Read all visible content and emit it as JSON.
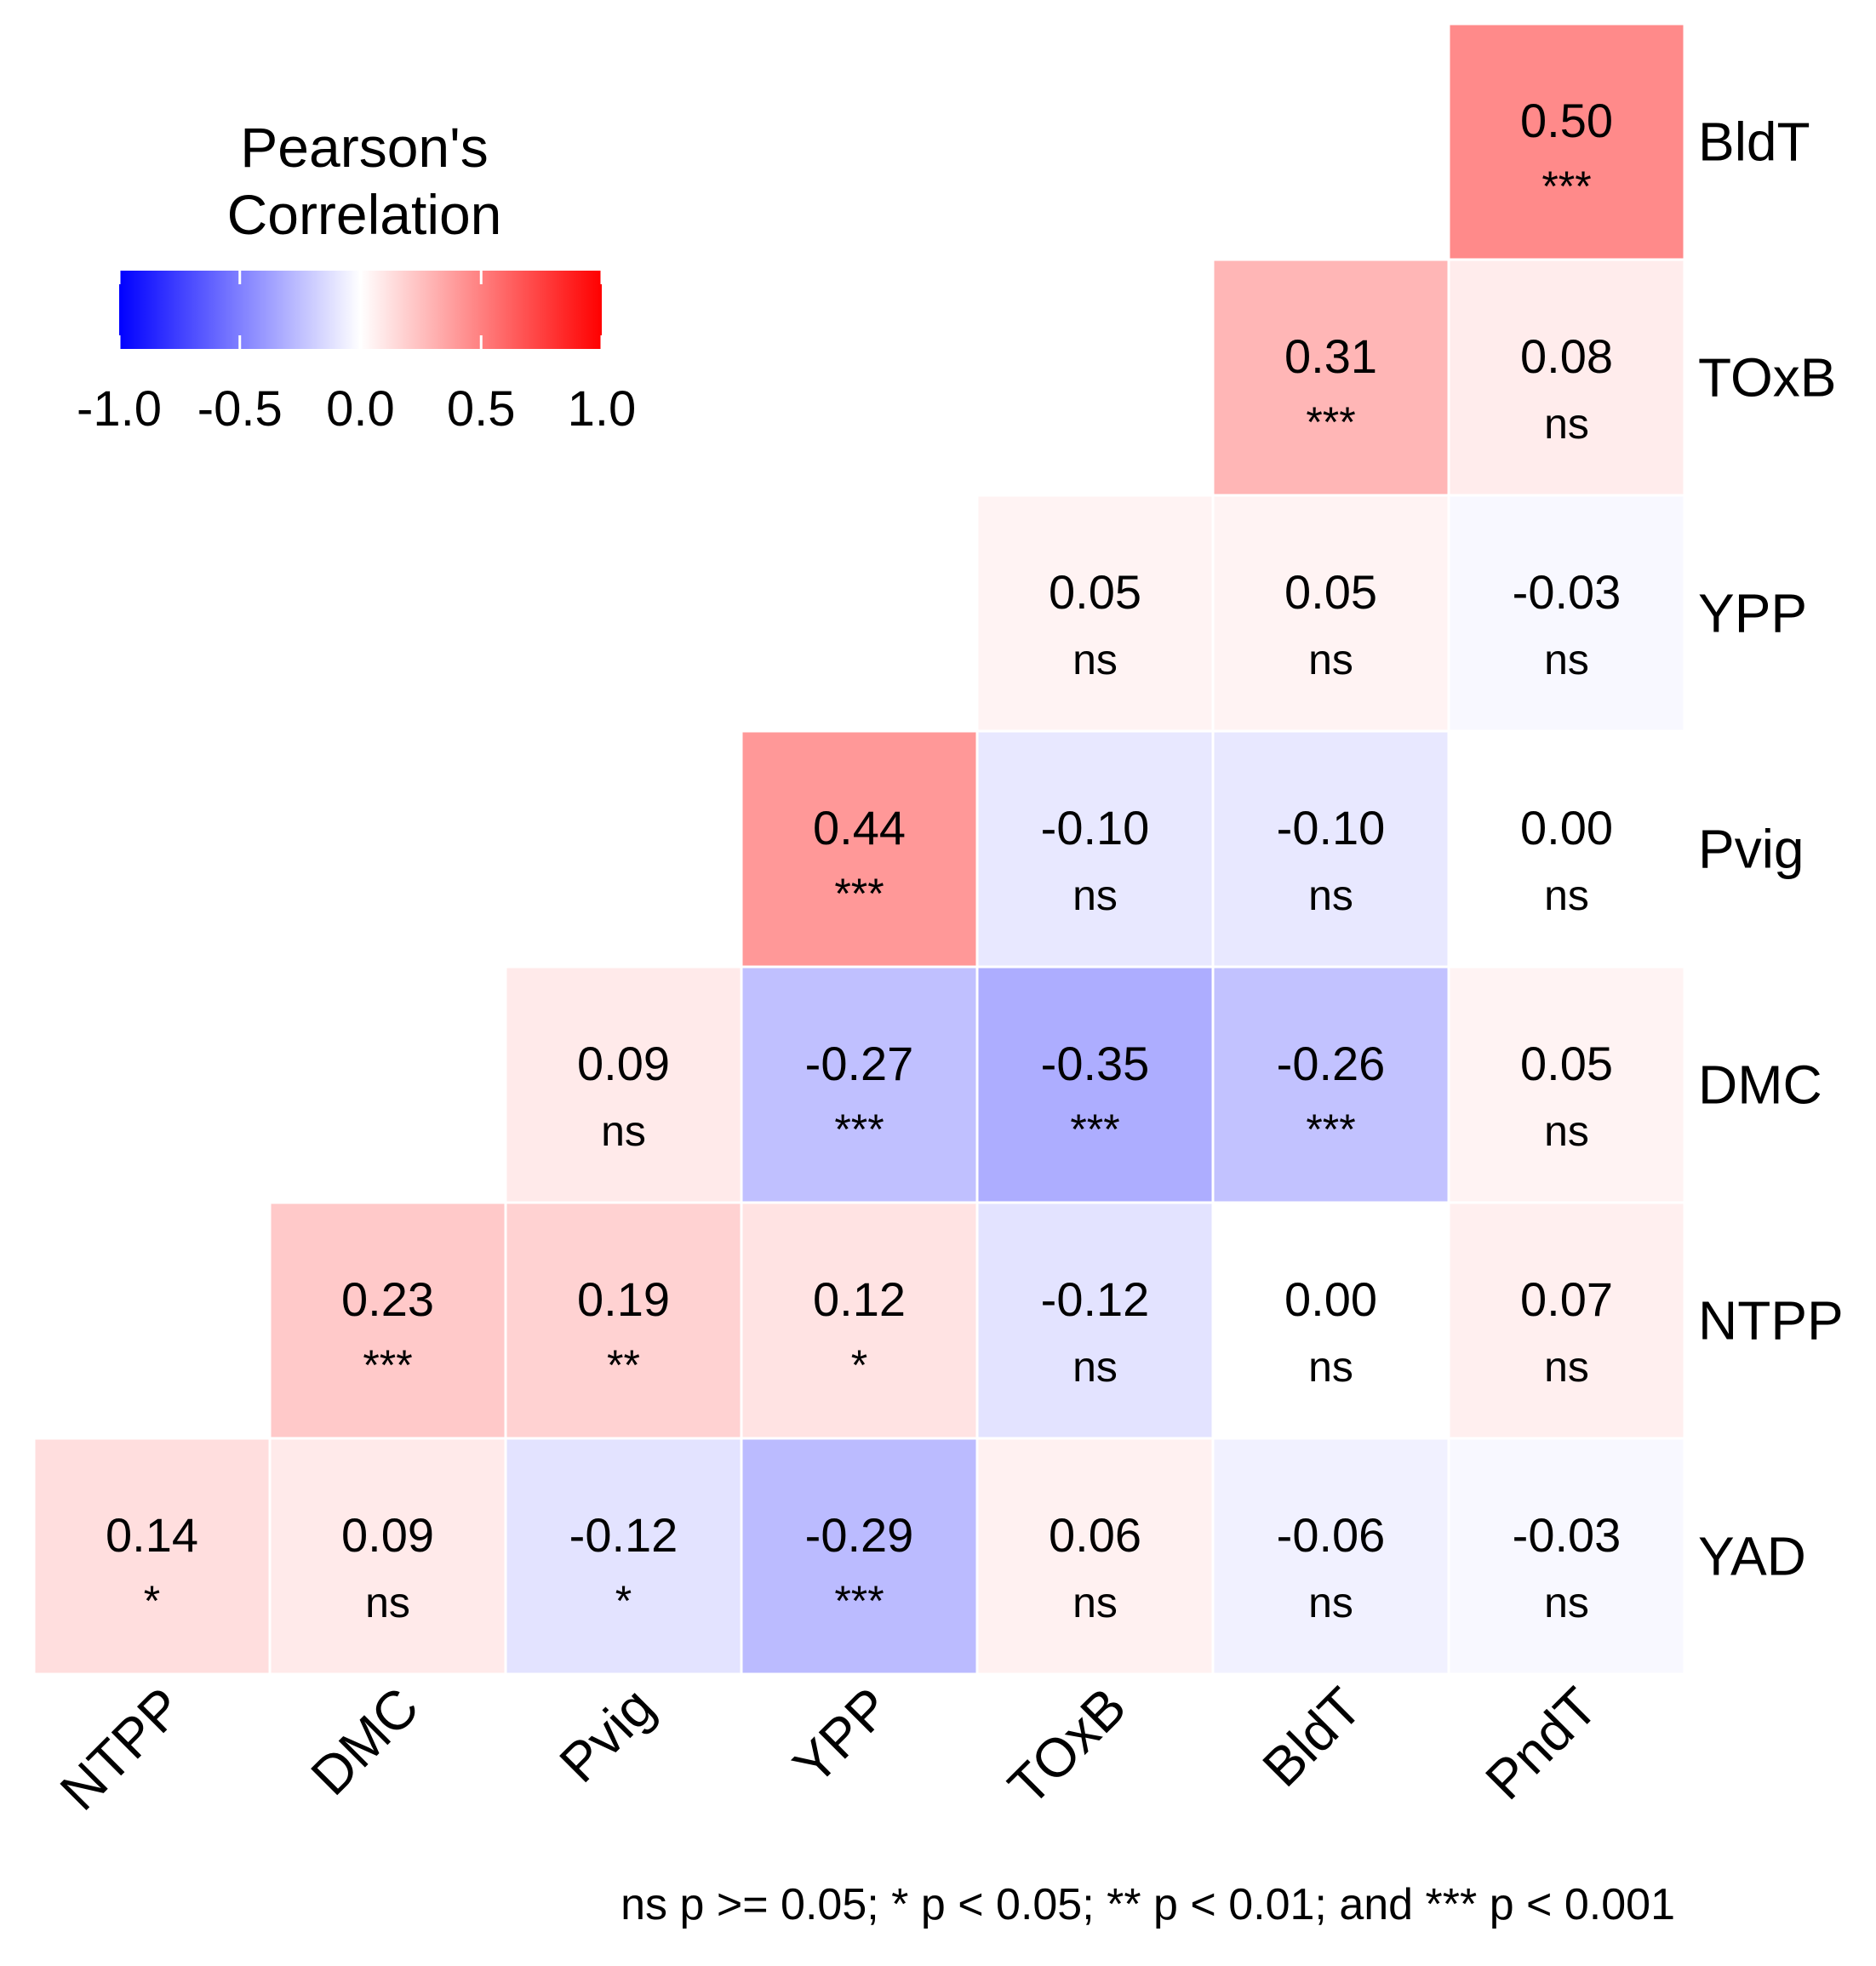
{
  "chart_data": {
    "type": "heatmap",
    "title": "",
    "legend": {
      "title_lines": [
        "Pearson's",
        "Correlation"
      ],
      "ticks": [
        -1.0,
        -0.5,
        0.0,
        0.5,
        1.0
      ],
      "tick_labels": [
        "-1.0",
        "-0.5",
        "0.0",
        "0.5",
        "1.0"
      ],
      "range": [
        -1,
        1
      ],
      "colors": {
        "low": "#0000ff",
        "mid": "#ffffff",
        "high": "#ff0000"
      },
      "placement": "top-left"
    },
    "x_labels": [
      "NTPP",
      "DMC",
      "Pvig",
      "YPP",
      "TOxB",
      "BldT",
      "PndT"
    ],
    "y_labels": [
      "BldT",
      "TOxB",
      "YPP",
      "Pvig",
      "DMC",
      "NTPP",
      "YAD"
    ],
    "cells": [
      {
        "row": "BldT",
        "col": "PndT",
        "value": 0.5,
        "label": "0.50",
        "sig": "***"
      },
      {
        "row": "TOxB",
        "col": "BldT",
        "value": 0.31,
        "label": "0.31",
        "sig": "***"
      },
      {
        "row": "TOxB",
        "col": "PndT",
        "value": 0.08,
        "label": "0.08",
        "sig": "ns"
      },
      {
        "row": "YPP",
        "col": "TOxB",
        "value": 0.05,
        "label": "0.05",
        "sig": "ns"
      },
      {
        "row": "YPP",
        "col": "BldT",
        "value": 0.05,
        "label": "0.05",
        "sig": "ns"
      },
      {
        "row": "YPP",
        "col": "PndT",
        "value": -0.03,
        "label": "-0.03",
        "sig": "ns"
      },
      {
        "row": "Pvig",
        "col": "YPP",
        "value": 0.44,
        "label": "0.44",
        "sig": "***"
      },
      {
        "row": "Pvig",
        "col": "TOxB",
        "value": -0.1,
        "label": "-0.10",
        "sig": "ns"
      },
      {
        "row": "Pvig",
        "col": "BldT",
        "value": -0.1,
        "label": "-0.10",
        "sig": "ns"
      },
      {
        "row": "Pvig",
        "col": "PndT",
        "value": 0.0,
        "label": "0.00",
        "sig": "ns"
      },
      {
        "row": "DMC",
        "col": "Pvig",
        "value": 0.09,
        "label": "0.09",
        "sig": "ns"
      },
      {
        "row": "DMC",
        "col": "YPP",
        "value": -0.27,
        "label": "-0.27",
        "sig": "***"
      },
      {
        "row": "DMC",
        "col": "TOxB",
        "value": -0.35,
        "label": "-0.35",
        "sig": "***"
      },
      {
        "row": "DMC",
        "col": "BldT",
        "value": -0.26,
        "label": "-0.26",
        "sig": "***"
      },
      {
        "row": "DMC",
        "col": "PndT",
        "value": 0.05,
        "label": "0.05",
        "sig": "ns"
      },
      {
        "row": "NTPP",
        "col": "DMC",
        "value": 0.23,
        "label": "0.23",
        "sig": "***"
      },
      {
        "row": "NTPP",
        "col": "Pvig",
        "value": 0.19,
        "label": "0.19",
        "sig": "**"
      },
      {
        "row": "NTPP",
        "col": "YPP",
        "value": 0.12,
        "label": "0.12",
        "sig": "*"
      },
      {
        "row": "NTPP",
        "col": "TOxB",
        "value": -0.12,
        "label": "-0.12",
        "sig": "ns"
      },
      {
        "row": "NTPP",
        "col": "BldT",
        "value": 0.0,
        "label": "0.00",
        "sig": "ns"
      },
      {
        "row": "NTPP",
        "col": "PndT",
        "value": 0.07,
        "label": "0.07",
        "sig": "ns"
      },
      {
        "row": "YAD",
        "col": "NTPP",
        "value": 0.14,
        "label": "0.14",
        "sig": "*"
      },
      {
        "row": "YAD",
        "col": "DMC",
        "value": 0.09,
        "label": "0.09",
        "sig": "ns"
      },
      {
        "row": "YAD",
        "col": "Pvig",
        "value": -0.12,
        "label": "-0.12",
        "sig": "*"
      },
      {
        "row": "YAD",
        "col": "YPP",
        "value": -0.29,
        "label": "-0.29",
        "sig": "***"
      },
      {
        "row": "YAD",
        "col": "TOxB",
        "value": 0.06,
        "label": "0.06",
        "sig": "ns"
      },
      {
        "row": "YAD",
        "col": "BldT",
        "value": -0.06,
        "label": "-0.06",
        "sig": "ns"
      },
      {
        "row": "YAD",
        "col": "PndT",
        "value": -0.03,
        "label": "-0.03",
        "sig": "ns"
      }
    ],
    "footnote": "ns p >= 0.05; * p < 0.05; ** p < 0.01; and *** p < 0.001"
  }
}
